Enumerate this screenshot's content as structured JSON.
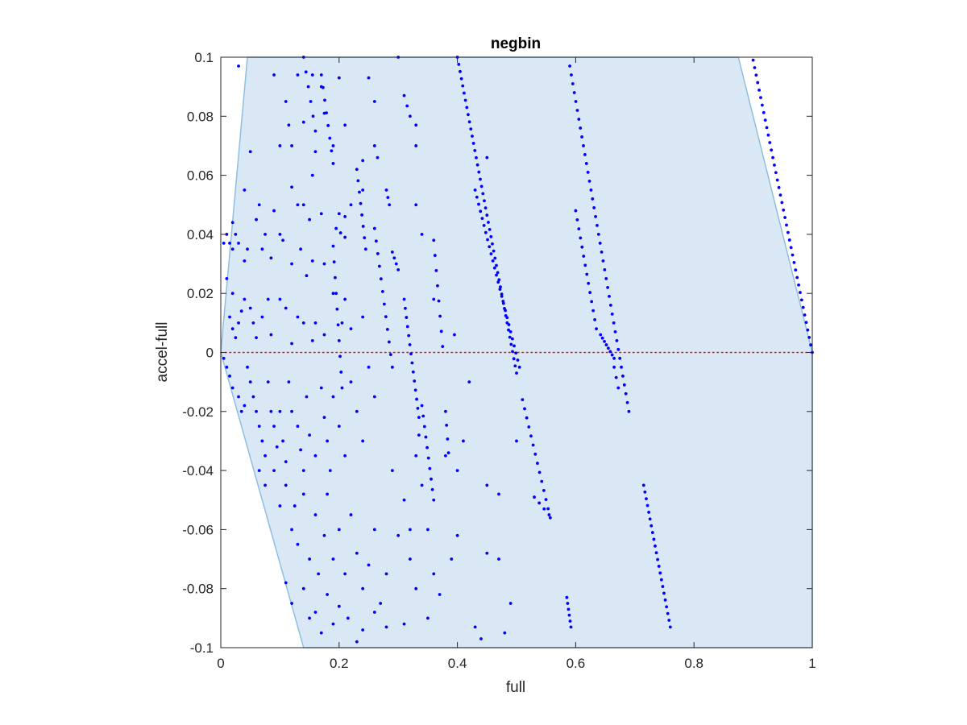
{
  "chart_data": {
    "type": "scatter",
    "title": "negbin",
    "xlabel": "full",
    "ylabel": "accel-full",
    "xlim": [
      0,
      1
    ],
    "ylim": [
      -0.1,
      0.1
    ],
    "x_ticks": [
      "0",
      "0.2",
      "0.4",
      "0.6",
      "0.8",
      "1"
    ],
    "y_ticks": [
      "-0.1",
      "-0.08",
      "-0.06",
      "-0.04",
      "-0.02",
      "0",
      "0.02",
      "0.04",
      "0.06",
      "0.08",
      "0.1"
    ],
    "grid": false,
    "legend": "none",
    "reference_line": {
      "y": 0,
      "style": "dotted",
      "color": "#ff0000"
    },
    "shaded_region": {
      "color": "#d9e8f4",
      "edge_color": "#8fbfe0",
      "vertices": [
        [
          0,
          0
        ],
        [
          0.045,
          0.1
        ],
        [
          0.875,
          0.1
        ],
        [
          1,
          0
        ],
        [
          1,
          -0.1
        ],
        [
          0.14,
          -0.1
        ],
        [
          0,
          0
        ]
      ]
    },
    "series": [
      {
        "color": "#0000ff",
        "lines": [
          [
            0.9,
            0.099,
            1.0,
            0.0,
            40
          ],
          [
            0.4,
            0.1,
            0.5,
            -0.007,
            45
          ],
          [
            0.59,
            0.097,
            0.69,
            -0.02,
            40
          ],
          [
            0.715,
            -0.045,
            0.76,
            -0.093,
            22
          ],
          [
            0.43,
            0.055,
            0.505,
            -0.005,
            26
          ],
          [
            0.51,
            -0.016,
            0.557,
            -0.056,
            14
          ],
          [
            0.6,
            0.048,
            0.635,
            0.008,
            14
          ],
          [
            0.642,
            0.006,
            0.665,
            -0.002,
            8
          ],
          [
            0.585,
            -0.083,
            0.592,
            -0.093,
            6
          ],
          [
            0.31,
            0.018,
            0.335,
            -0.022,
            14
          ],
          [
            0.36,
            0.038,
            0.375,
            0.002,
            8
          ],
          [
            0.34,
            -0.018,
            0.36,
            -0.05,
            10
          ],
          [
            0.23,
            0.062,
            0.245,
            0.035,
            8
          ],
          [
            0.26,
            0.042,
            0.29,
            -0.005,
            12
          ],
          [
            0.19,
            0.036,
            0.205,
            -0.012,
            10
          ],
          [
            0.14,
            0.1,
            0.16,
            0.075,
            6
          ],
          [
            0.17,
            0.094,
            0.19,
            0.064,
            8
          ],
          [
            0.29,
            0.034,
            0.3,
            0.028,
            4
          ],
          [
            0.28,
            0.055,
            0.285,
            0.05,
            3
          ],
          [
            0.38,
            -0.02,
            0.385,
            -0.034,
            4
          ],
          [
            0.53,
            -0.049,
            0.555,
            -0.055,
            4
          ],
          [
            0.665,
            -0.005,
            0.672,
            -0.012,
            3
          ],
          [
            0.31,
            0.087,
            0.32,
            0.08,
            3
          ],
          [
            0.195,
            0.042,
            0.21,
            0.039,
            3
          ]
        ],
        "points": [
          [
            0.03,
            0.097
          ],
          [
            0.09,
            0.094
          ],
          [
            0.11,
            0.085
          ],
          [
            0.13,
            0.094
          ],
          [
            0.155,
            0.094
          ],
          [
            0.17,
            0.09
          ],
          [
            0.175,
            0.081
          ],
          [
            0.2,
            0.093
          ],
          [
            0.21,
            0.077
          ],
          [
            0.25,
            0.093
          ],
          [
            0.26,
            0.085
          ],
          [
            0.3,
            0.1
          ],
          [
            0.1,
            0.07
          ],
          [
            0.115,
            0.077
          ],
          [
            0.12,
            0.07
          ],
          [
            0.14,
            0.078
          ],
          [
            0.155,
            0.06
          ],
          [
            0.16,
            0.068
          ],
          [
            0.19,
            0.07
          ],
          [
            0.24,
            0.065
          ],
          [
            0.26,
            0.07
          ],
          [
            0.265,
            0.066
          ],
          [
            0.33,
            0.077
          ],
          [
            0.33,
            0.07
          ],
          [
            0.45,
            0.066
          ],
          [
            0.05,
            0.068
          ],
          [
            0.09,
            0.048
          ],
          [
            0.1,
            0.04
          ],
          [
            0.12,
            0.056
          ],
          [
            0.13,
            0.05
          ],
          [
            0.14,
            0.05
          ],
          [
            0.15,
            0.045
          ],
          [
            0.17,
            0.047
          ],
          [
            0.2,
            0.047
          ],
          [
            0.21,
            0.046
          ],
          [
            0.22,
            0.05
          ],
          [
            0.24,
            0.055
          ],
          [
            0.33,
            0.05
          ],
          [
            0.34,
            0.04
          ],
          [
            0.02,
            0.044
          ],
          [
            0.025,
            0.04
          ],
          [
            0.02,
            0.035
          ],
          [
            0.03,
            0.037
          ],
          [
            0.005,
            0.037
          ],
          [
            0.01,
            0.04
          ],
          [
            0.015,
            0.037
          ],
          [
            0.04,
            0.031
          ],
          [
            0.045,
            0.035
          ],
          [
            0.04,
            0.055
          ],
          [
            0.06,
            0.045
          ],
          [
            0.065,
            0.05
          ],
          [
            0.07,
            0.035
          ],
          [
            0.075,
            0.04
          ],
          [
            0.085,
            0.032
          ],
          [
            0.105,
            0.038
          ],
          [
            0.12,
            0.03
          ],
          [
            0.135,
            0.035
          ],
          [
            0.145,
            0.026
          ],
          [
            0.155,
            0.031
          ],
          [
            0.175,
            0.03
          ],
          [
            0.19,
            0.02
          ],
          [
            0.21,
            0.018
          ],
          [
            0.01,
            0.025
          ],
          [
            0.02,
            0.02
          ],
          [
            0.015,
            0.012
          ],
          [
            0.02,
            0.008
          ],
          [
            0.025,
            0.005
          ],
          [
            0.03,
            0.01
          ],
          [
            0.035,
            0.014
          ],
          [
            0.04,
            0.018
          ],
          [
            0.05,
            0.015
          ],
          [
            0.055,
            0.01
          ],
          [
            0.06,
            0.005
          ],
          [
            0.07,
            0.012
          ],
          [
            0.08,
            0.018
          ],
          [
            0.085,
            0.006
          ],
          [
            0.1,
            0.018
          ],
          [
            0.11,
            0.015
          ],
          [
            0.12,
            0.003
          ],
          [
            0.13,
            0.012
          ],
          [
            0.14,
            0.01
          ],
          [
            0.155,
            0.004
          ],
          [
            0.16,
            0.01
          ],
          [
            0.175,
            0.006
          ],
          [
            0.205,
            0.01
          ],
          [
            0.22,
            0.008
          ],
          [
            0.24,
            0.012
          ],
          [
            0.005,
            -0.002
          ],
          [
            0.01,
            -0.005
          ],
          [
            0.015,
            -0.008
          ],
          [
            0.02,
            -0.012
          ],
          [
            0.03,
            -0.015
          ],
          [
            0.035,
            -0.02
          ],
          [
            0.04,
            -0.018
          ],
          [
            0.045,
            -0.005
          ],
          [
            0.05,
            -0.01
          ],
          [
            0.055,
            -0.015
          ],
          [
            0.06,
            -0.02
          ],
          [
            0.065,
            -0.025
          ],
          [
            0.07,
            -0.03
          ],
          [
            0.075,
            -0.035
          ],
          [
            0.08,
            -0.01
          ],
          [
            0.085,
            -0.02
          ],
          [
            0.09,
            -0.025
          ],
          [
            0.095,
            -0.032
          ],
          [
            0.1,
            -0.02
          ],
          [
            0.105,
            -0.03
          ],
          [
            0.11,
            -0.037
          ],
          [
            0.115,
            -0.01
          ],
          [
            0.12,
            -0.02
          ],
          [
            0.13,
            -0.025
          ],
          [
            0.135,
            -0.033
          ],
          [
            0.14,
            -0.04
          ],
          [
            0.145,
            -0.015
          ],
          [
            0.15,
            -0.028
          ],
          [
            0.16,
            -0.035
          ],
          [
            0.17,
            -0.012
          ],
          [
            0.175,
            -0.022
          ],
          [
            0.18,
            -0.03
          ],
          [
            0.185,
            -0.04
          ],
          [
            0.19,
            -0.015
          ],
          [
            0.2,
            -0.025
          ],
          [
            0.21,
            -0.035
          ],
          [
            0.22,
            -0.01
          ],
          [
            0.23,
            -0.02
          ],
          [
            0.24,
            -0.03
          ],
          [
            0.25,
            -0.005
          ],
          [
            0.26,
            -0.015
          ],
          [
            0.065,
            -0.04
          ],
          [
            0.075,
            -0.045
          ],
          [
            0.09,
            -0.04
          ],
          [
            0.1,
            -0.052
          ],
          [
            0.11,
            -0.045
          ],
          [
            0.12,
            -0.06
          ],
          [
            0.125,
            -0.052
          ],
          [
            0.13,
            -0.065
          ],
          [
            0.14,
            -0.048
          ],
          [
            0.15,
            -0.07
          ],
          [
            0.16,
            -0.055
          ],
          [
            0.165,
            -0.075
          ],
          [
            0.175,
            -0.062
          ],
          [
            0.18,
            -0.048
          ],
          [
            0.19,
            -0.07
          ],
          [
            0.2,
            -0.06
          ],
          [
            0.21,
            -0.075
          ],
          [
            0.22,
            -0.055
          ],
          [
            0.23,
            -0.068
          ],
          [
            0.24,
            -0.08
          ],
          [
            0.25,
            -0.072
          ],
          [
            0.26,
            -0.06
          ],
          [
            0.27,
            -0.085
          ],
          [
            0.28,
            -0.075
          ],
          [
            0.3,
            -0.062
          ],
          [
            0.32,
            -0.07
          ],
          [
            0.33,
            -0.08
          ],
          [
            0.34,
            -0.045
          ],
          [
            0.35,
            -0.06
          ],
          [
            0.36,
            -0.075
          ],
          [
            0.37,
            -0.082
          ],
          [
            0.11,
            -0.078
          ],
          [
            0.12,
            -0.085
          ],
          [
            0.14,
            -0.08
          ],
          [
            0.15,
            -0.09
          ],
          [
            0.16,
            -0.088
          ],
          [
            0.17,
            -0.095
          ],
          [
            0.18,
            -0.082
          ],
          [
            0.19,
            -0.092
          ],
          [
            0.2,
            -0.086
          ],
          [
            0.215,
            -0.09
          ],
          [
            0.23,
            -0.098
          ],
          [
            0.24,
            -0.094
          ],
          [
            0.26,
            -0.088
          ],
          [
            0.28,
            -0.093
          ],
          [
            0.31,
            -0.092
          ],
          [
            0.35,
            -0.09
          ],
          [
            0.43,
            -0.093
          ],
          [
            0.44,
            -0.097
          ],
          [
            0.48,
            -0.095
          ],
          [
            0.49,
            -0.085
          ],
          [
            0.45,
            -0.068
          ],
          [
            0.47,
            -0.07
          ],
          [
            0.39,
            -0.07
          ],
          [
            0.4,
            -0.062
          ],
          [
            0.29,
            -0.04
          ],
          [
            0.31,
            -0.05
          ],
          [
            0.32,
            -0.06
          ],
          [
            0.33,
            -0.035
          ],
          [
            0.335,
            -0.028
          ],
          [
            0.38,
            -0.035
          ],
          [
            0.4,
            -0.04
          ],
          [
            0.41,
            -0.03
          ],
          [
            0.45,
            -0.045
          ],
          [
            0.47,
            -0.048
          ],
          [
            0.36,
            0.018
          ],
          [
            0.395,
            0.006
          ],
          [
            0.42,
            -0.01
          ],
          [
            0.5,
            -0.03
          ]
        ]
      }
    ]
  }
}
